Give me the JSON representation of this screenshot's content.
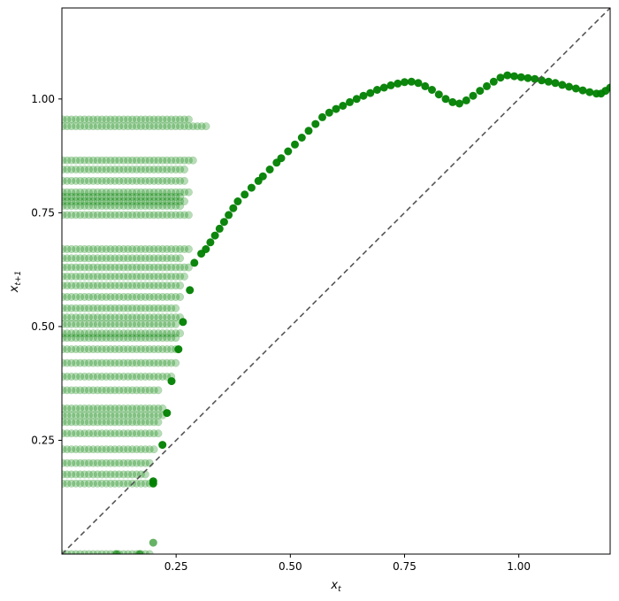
{
  "chart_data": {
    "type": "scatter",
    "title": "",
    "xlabel": "x",
    "xlabel_sub": "t",
    "ylabel": "x",
    "ylabel_sub": "t+1",
    "xlim": [
      0.0,
      1.2
    ],
    "ylim": [
      0.0,
      1.2
    ],
    "x_ticks": [
      0.25,
      0.5,
      0.75,
      1.0
    ],
    "x_tick_labels": [
      "0.25",
      "0.50",
      "0.75",
      "1.00"
    ],
    "y_ticks": [
      0.25,
      0.5,
      0.75,
      1.0
    ],
    "y_tick_labels": [
      "0.25",
      "0.50",
      "0.75",
      "1.00"
    ],
    "grid": false,
    "colors": {
      "points": "#008000",
      "diagonal": "#555555"
    },
    "reference_line": {
      "style": "dashed",
      "from": [
        0,
        0
      ],
      "to": [
        1.2,
        1.2
      ]
    },
    "transient_rows": [
      {
        "y": 0.955,
        "x_max": 0.28
      },
      {
        "y": 0.94,
        "x_max": 0.32
      },
      {
        "y": 0.865,
        "x_max": 0.295
      },
      {
        "y": 0.845,
        "x_max": 0.27
      },
      {
        "y": 0.82,
        "x_max": 0.27
      },
      {
        "y": 0.795,
        "x_max": 0.28
      },
      {
        "y": 0.785,
        "x_max": 0.26
      },
      {
        "y": 0.775,
        "x_max": 0.27
      },
      {
        "y": 0.765,
        "x_max": 0.26
      },
      {
        "y": 0.745,
        "x_max": 0.28
      },
      {
        "y": 0.67,
        "x_max": 0.28
      },
      {
        "y": 0.65,
        "x_max": 0.26
      },
      {
        "y": 0.63,
        "x_max": 0.285
      },
      {
        "y": 0.61,
        "x_max": 0.27
      },
      {
        "y": 0.59,
        "x_max": 0.26
      },
      {
        "y": 0.565,
        "x_max": 0.26
      },
      {
        "y": 0.54,
        "x_max": 0.25
      },
      {
        "y": 0.52,
        "x_max": 0.26
      },
      {
        "y": 0.505,
        "x_max": 0.25
      },
      {
        "y": 0.485,
        "x_max": 0.26
      },
      {
        "y": 0.475,
        "x_max": 0.25
      },
      {
        "y": 0.45,
        "x_max": 0.25
      },
      {
        "y": 0.42,
        "x_max": 0.25
      },
      {
        "y": 0.39,
        "x_max": 0.24
      },
      {
        "y": 0.36,
        "x_max": 0.22
      },
      {
        "y": 0.32,
        "x_max": 0.23
      },
      {
        "y": 0.305,
        "x_max": 0.23
      },
      {
        "y": 0.29,
        "x_max": 0.22
      },
      {
        "y": 0.265,
        "x_max": 0.22
      },
      {
        "y": 0.23,
        "x_max": 0.21
      },
      {
        "y": 0.2,
        "x_max": 0.2
      },
      {
        "y": 0.175,
        "x_max": 0.19
      },
      {
        "y": 0.155,
        "x_max": 0.2
      },
      {
        "y": 0.0,
        "x_max": 0.2
      }
    ],
    "attractor_points": [
      [
        0.2,
        0.155
      ],
      [
        0.2,
        0.16
      ],
      [
        0.22,
        0.24
      ],
      [
        0.23,
        0.31
      ],
      [
        0.24,
        0.38
      ],
      [
        0.255,
        0.45
      ],
      [
        0.265,
        0.51
      ],
      [
        0.28,
        0.58
      ],
      [
        0.29,
        0.64
      ],
      [
        0.305,
        0.66
      ],
      [
        0.315,
        0.67
      ],
      [
        0.325,
        0.685
      ],
      [
        0.335,
        0.7
      ],
      [
        0.345,
        0.715
      ],
      [
        0.355,
        0.73
      ],
      [
        0.365,
        0.745
      ],
      [
        0.375,
        0.76
      ],
      [
        0.385,
        0.775
      ],
      [
        0.4,
        0.79
      ],
      [
        0.415,
        0.805
      ],
      [
        0.43,
        0.82
      ],
      [
        0.44,
        0.83
      ],
      [
        0.455,
        0.845
      ],
      [
        0.47,
        0.86
      ],
      [
        0.48,
        0.87
      ],
      [
        0.495,
        0.885
      ],
      [
        0.51,
        0.9
      ],
      [
        0.525,
        0.915
      ],
      [
        0.54,
        0.93
      ],
      [
        0.555,
        0.945
      ],
      [
        0.57,
        0.96
      ],
      [
        0.585,
        0.97
      ],
      [
        0.6,
        0.978
      ],
      [
        0.615,
        0.985
      ],
      [
        0.63,
        0.993
      ],
      [
        0.645,
        1.0
      ],
      [
        0.66,
        1.007
      ],
      [
        0.675,
        1.013
      ],
      [
        0.69,
        1.02
      ],
      [
        0.705,
        1.025
      ],
      [
        0.72,
        1.03
      ],
      [
        0.735,
        1.034
      ],
      [
        0.75,
        1.037
      ],
      [
        0.765,
        1.038
      ],
      [
        0.78,
        1.035
      ],
      [
        0.795,
        1.028
      ],
      [
        0.81,
        1.02
      ],
      [
        0.825,
        1.01
      ],
      [
        0.84,
        1.0
      ],
      [
        0.855,
        0.993
      ],
      [
        0.87,
        0.99
      ],
      [
        0.885,
        0.997
      ],
      [
        0.9,
        1.007
      ],
      [
        0.915,
        1.018
      ],
      [
        0.93,
        1.028
      ],
      [
        0.945,
        1.038
      ],
      [
        0.96,
        1.047
      ],
      [
        0.975,
        1.052
      ],
      [
        0.99,
        1.05
      ],
      [
        1.005,
        1.048
      ],
      [
        1.02,
        1.046
      ],
      [
        1.035,
        1.044
      ],
      [
        1.05,
        1.041
      ],
      [
        1.065,
        1.038
      ],
      [
        1.08,
        1.035
      ],
      [
        1.095,
        1.031
      ],
      [
        1.11,
        1.027
      ],
      [
        1.125,
        1.023
      ],
      [
        1.14,
        1.019
      ],
      [
        1.155,
        1.015
      ],
      [
        1.17,
        1.012
      ],
      [
        1.18,
        1.012
      ],
      [
        1.19,
        1.018
      ],
      [
        1.2,
        1.025
      ]
    ],
    "extra_points": [
      [
        0.2,
        0.025
      ],
      [
        0.17,
        0.0
      ],
      [
        0.12,
        0.0
      ]
    ]
  }
}
